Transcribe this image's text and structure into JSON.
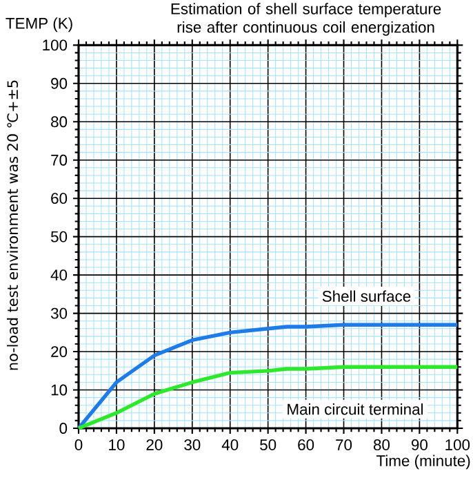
{
  "chart_data": {
    "type": "line",
    "title": "Estimation of shell surface temperature rise after continuous coil energization",
    "ylabel": "TEMP (K)",
    "xlabel": "Time (minute)",
    "annotations": [
      "no-load test environment was 20 ℃+±5"
    ],
    "x": [
      0,
      10,
      20,
      30,
      40,
      50,
      55,
      60,
      70,
      80,
      90,
      100
    ],
    "series": [
      {
        "name": "Shell surface",
        "color": "#1e7be8",
        "values": [
          0,
          12,
          19,
          23,
          25,
          26,
          26.5,
          26.5,
          27,
          27,
          27,
          27
        ]
      },
      {
        "name": "Main circuit terminal",
        "color": "#2ee82e",
        "values": [
          0,
          4,
          9,
          12,
          14.5,
          15,
          15.5,
          15.5,
          16,
          16,
          16,
          16
        ]
      }
    ],
    "xlim": [
      0,
      100
    ],
    "ylim": [
      0,
      100
    ],
    "xticks": [
      0,
      {
        "value": 2,
        "label": null
      },
      {
        "value": 4,
        "label": null
      },
      {
        "value": 6,
        "label": null
      },
      {
        "value": 8,
        "label": null
      },
      10,
      {
        "value": 12,
        "label": null
      },
      {
        "value": 14,
        "label": null
      },
      {
        "value": 16,
        "label": null
      },
      {
        "value": 18,
        "label": null
      },
      20,
      {
        "value": 22,
        "label": null
      },
      {
        "value": 24,
        "label": null
      },
      {
        "value": 26,
        "label": null
      },
      {
        "value": 28,
        "label": null
      },
      30,
      {
        "value": 32,
        "label": null
      },
      {
        "value": 34,
        "label": null
      },
      {
        "value": 36,
        "label": null
      },
      {
        "value": 38,
        "label": null
      },
      40,
      {
        "value": 42,
        "label": null
      },
      {
        "value": 44,
        "label": null
      },
      {
        "value": 46,
        "label": null
      },
      {
        "value": 48,
        "label": null
      },
      50,
      {
        "value": 52,
        "label": null
      },
      {
        "value": 54,
        "label": null
      },
      {
        "value": 56,
        "label": null
      },
      {
        "value": 58,
        "label": null
      },
      60,
      {
        "value": 62,
        "label": null
      },
      {
        "value": 64,
        "label": null
      },
      {
        "value": 66,
        "label": null
      },
      {
        "value": 68,
        "label": null
      },
      70,
      {
        "value": 72,
        "label": null
      },
      {
        "value": 74,
        "label": null
      },
      {
        "value": 76,
        "label": null
      },
      {
        "value": 78,
        "label": null
      },
      80,
      {
        "value": 82,
        "label": null
      },
      {
        "value": 84,
        "label": null
      },
      {
        "value": 86,
        "label": null
      },
      {
        "value": 88,
        "label": null
      },
      90,
      {
        "value": 92,
        "label": null
      },
      {
        "value": 94,
        "label": null
      },
      {
        "value": 96,
        "label": null
      },
      {
        "value": 98,
        "label": null
      },
      100
    ],
    "yticks": [
      0,
      {
        "value": 2,
        "label": null
      },
      {
        "value": 4,
        "label": null
      },
      {
        "value": 6,
        "label": null
      },
      {
        "value": 8,
        "label": null
      },
      10,
      {
        "value": 12,
        "label": null
      },
      {
        "value": 14,
        "label": null
      },
      {
        "value": 16,
        "label": null
      },
      {
        "value": 18,
        "label": null
      },
      20,
      {
        "value": 22,
        "label": null
      },
      {
        "value": 24,
        "label": null
      },
      {
        "value": 26,
        "label": null
      },
      {
        "value": 28,
        "label": null
      },
      30,
      {
        "value": 32,
        "label": null
      },
      {
        "value": 34,
        "label": null
      },
      {
        "value": 36,
        "label": null
      },
      {
        "value": 38,
        "label": null
      },
      40,
      {
        "value": 42,
        "label": null
      },
      {
        "value": 44,
        "label": null
      },
      {
        "value": 46,
        "label": null
      },
      {
        "value": 48,
        "label": null
      },
      50,
      {
        "value": 52,
        "label": null
      },
      {
        "value": 54,
        "label": null
      },
      {
        "value": 56,
        "label": null
      },
      {
        "value": 58,
        "label": null
      },
      60,
      {
        "value": 62,
        "label": null
      },
      {
        "value": 64,
        "label": null
      },
      {
        "value": 66,
        "label": null
      },
      {
        "value": 68,
        "label": null
      },
      70,
      {
        "value": 72,
        "label": null
      },
      {
        "value": 74,
        "label": null
      },
      {
        "value": 76,
        "label": null
      },
      {
        "value": 78,
        "label": null
      },
      80,
      {
        "value": 82,
        "label": null
      },
      {
        "value": 84,
        "label": null
      },
      {
        "value": 86,
        "label": null
      },
      {
        "value": 88,
        "label": null
      },
      90,
      {
        "value": 92,
        "label": null
      },
      {
        "value": 94,
        "label": null
      },
      {
        "value": 96,
        "label": null
      },
      {
        "value": 98,
        "label": null
      },
      100
    ],
    "grid": true,
    "marker": "none",
    "line_style": "solid"
  }
}
